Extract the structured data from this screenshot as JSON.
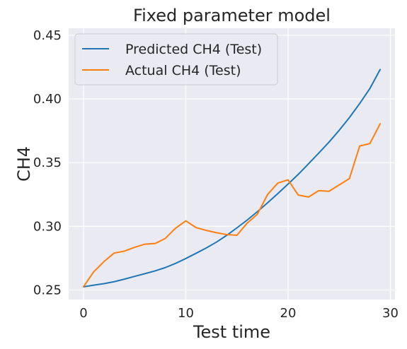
{
  "chart_data": {
    "type": "line",
    "title": "Fixed parameter model",
    "xlabel": "Test time",
    "ylabel": "CH4",
    "xlim": [
      -1.45,
      30.45
    ],
    "ylim": [
      0.2425,
      0.4555
    ],
    "xticks": [
      0,
      10,
      20,
      30
    ],
    "xtick_labels": [
      "0",
      "10",
      "20",
      "30"
    ],
    "yticks": [
      0.25,
      0.3,
      0.35,
      0.4,
      0.45
    ],
    "ytick_labels": [
      "0.25",
      "0.30",
      "0.35",
      "0.40",
      "0.45"
    ],
    "grid": true,
    "legend_position": "upper-left",
    "x": [
      0,
      1,
      2,
      3,
      4,
      5,
      6,
      7,
      8,
      9,
      10,
      11,
      12,
      13,
      14,
      15,
      16,
      17,
      18,
      19,
      20,
      21,
      22,
      23,
      24,
      25,
      26,
      27,
      28,
      29
    ],
    "series": [
      {
        "name": "Predicted CH4 (Test)",
        "color": "#1f77b4",
        "values": [
          0.2525,
          0.2538,
          0.255,
          0.2565,
          0.2585,
          0.2607,
          0.2628,
          0.265,
          0.2676,
          0.2709,
          0.2747,
          0.2788,
          0.283,
          0.2876,
          0.2929,
          0.2988,
          0.3049,
          0.3115,
          0.3185,
          0.3257,
          0.3332,
          0.3408,
          0.3491,
          0.3575,
          0.3661,
          0.3754,
          0.3854,
          0.3964,
          0.4082,
          0.4231
        ]
      },
      {
        "name": "Actual CH4 (Test)",
        "color": "#ff7f0e",
        "values": [
          0.2525,
          0.2643,
          0.2723,
          0.279,
          0.2805,
          0.2835,
          0.286,
          0.2865,
          0.2905,
          0.2985,
          0.3043,
          0.299,
          0.2968,
          0.295,
          0.2935,
          0.293,
          0.3025,
          0.3095,
          0.325,
          0.334,
          0.3365,
          0.3245,
          0.323,
          0.328,
          0.3275,
          0.3325,
          0.3375,
          0.363,
          0.365,
          0.3805
        ]
      }
    ]
  }
}
